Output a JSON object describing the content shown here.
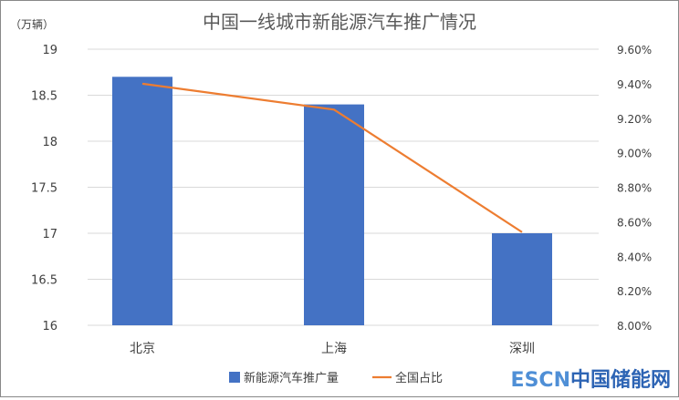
{
  "chart_data": {
    "type": "bar+line",
    "title": "中国一线城市新能源汽车推广情况",
    "ylabel": "（万辆）",
    "categories": [
      "北京",
      "上海",
      "深圳"
    ],
    "series": [
      {
        "name": "新能源汽车推广量",
        "type": "bar",
        "axis": "left",
        "color": "#4472c4",
        "values": [
          18.7,
          18.4,
          17.0
        ]
      },
      {
        "name": "全国占比",
        "type": "line",
        "axis": "right",
        "color": "#ed7d31",
        "values": [
          9.4,
          9.25,
          8.54
        ]
      }
    ],
    "ylim": [
      16,
      19
    ],
    "yticks": [
      "16",
      "16.5",
      "17",
      "17.5",
      "18",
      "18.5",
      "19"
    ],
    "y2lim": [
      8.0,
      9.6
    ],
    "y2ticks": [
      "8.00%",
      "8.20%",
      "8.40%",
      "8.60%",
      "8.80%",
      "9.00%",
      "9.20%",
      "9.40%",
      "9.60%"
    ],
    "grid": true,
    "legend": "bottom"
  },
  "watermark": {
    "prefix": "ESCN",
    "suffix": "中国储能网"
  }
}
